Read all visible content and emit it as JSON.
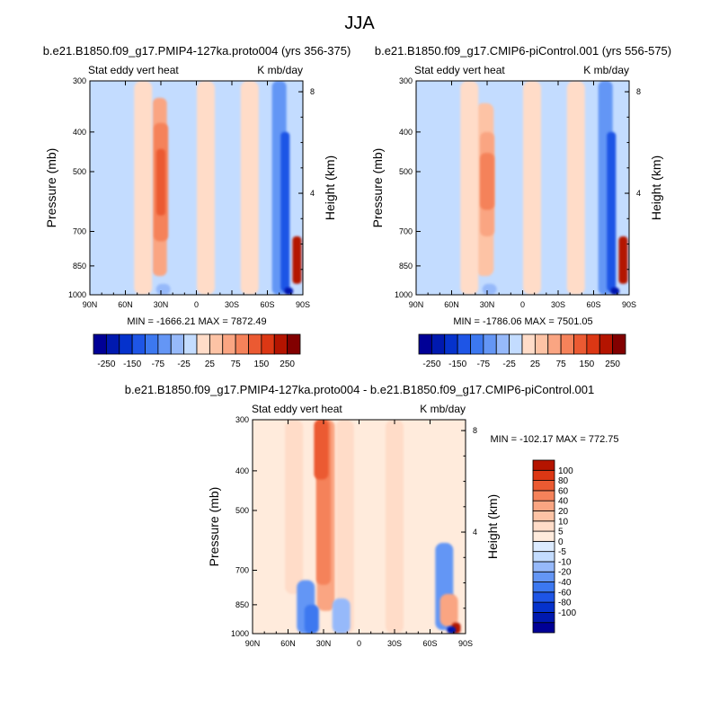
{
  "season_title": "JJA",
  "shared": {
    "x_ticks": [
      "90N",
      "60N",
      "30N",
      "0",
      "30S",
      "60S",
      "90S"
    ],
    "y_ticks": [
      "300",
      "400",
      "500",
      "700",
      "850",
      "1000"
    ],
    "height_ticks": [
      "8",
      "4"
    ],
    "ylabel": "Pressure (mb)",
    "y2label": "Height (km)"
  },
  "chart_data": [
    {
      "type": "heatmap",
      "id": "panel_a",
      "title": "b.e21.B1850.f09_g17.PMIP4-127ka.proto004 (yrs 356-375)",
      "left_label": "Stat eddy vert heat",
      "right_label": "K mb/day",
      "min_max": "MIN = -1666.21   MAX = 7872.49",
      "x_range": [
        90,
        -90
      ],
      "y_range_mb": [
        1000,
        300
      ],
      "features": [
        {
          "lat": 31,
          "p_from": 330,
          "p_to": 900,
          "value": 50
        },
        {
          "lat": 30,
          "p_from": 380,
          "p_to": 740,
          "value": 75
        },
        {
          "lat": 30,
          "p_from": 440,
          "p_to": 640,
          "value": 100
        },
        {
          "lat": 45,
          "p_from": 300,
          "p_to": 1000,
          "value": 10
        },
        {
          "lat": -8,
          "p_from": 300,
          "p_to": 1000,
          "value": 10
        },
        {
          "lat": -45,
          "p_from": 300,
          "p_to": 1000,
          "value": 10
        },
        {
          "lat": -70,
          "p_from": 300,
          "p_to": 1000,
          "value": -60
        },
        {
          "lat": -75,
          "p_from": 400,
          "p_to": 980,
          "value": -150
        },
        {
          "lat": -85,
          "p_from": 720,
          "p_to": 940,
          "value": 200
        },
        {
          "lat": -78,
          "p_from": 960,
          "p_to": 1000,
          "value": -250
        },
        {
          "lat": 28,
          "p_from": 940,
          "p_to": 1000,
          "value": -50
        }
      ]
    },
    {
      "type": "heatmap",
      "id": "panel_b",
      "title": "b.e21.B1850.f09_g17.CMIP6-piControl.001 (yrs 556-575)",
      "left_label": "Stat eddy vert heat",
      "right_label": "K mb/day",
      "min_max": "MIN = -1786.06   MAX = 7501.05",
      "x_range": [
        90,
        -90
      ],
      "y_range_mb": [
        1000,
        300
      ],
      "features": [
        {
          "lat": 32,
          "p_from": 340,
          "p_to": 900,
          "value": 25
        },
        {
          "lat": 30,
          "p_from": 400,
          "p_to": 720,
          "value": 50
        },
        {
          "lat": 30,
          "p_from": 450,
          "p_to": 620,
          "value": 75
        },
        {
          "lat": 45,
          "p_from": 300,
          "p_to": 1000,
          "value": 10
        },
        {
          "lat": -8,
          "p_from": 300,
          "p_to": 1000,
          "value": 10
        },
        {
          "lat": -45,
          "p_from": 300,
          "p_to": 1000,
          "value": 10
        },
        {
          "lat": -70,
          "p_from": 300,
          "p_to": 1000,
          "value": -60
        },
        {
          "lat": -75,
          "p_from": 400,
          "p_to": 980,
          "value": -150
        },
        {
          "lat": -85,
          "p_from": 720,
          "p_to": 940,
          "value": 200
        },
        {
          "lat": -78,
          "p_from": 960,
          "p_to": 1000,
          "value": -250
        },
        {
          "lat": 28,
          "p_from": 940,
          "p_to": 1000,
          "value": -50
        }
      ]
    },
    {
      "type": "heatmap",
      "id": "panel_diff",
      "title": "b.e21.B1850.f09_g17.PMIP4-127ka.proto004 - b.e21.B1850.f09_g17.CMIP6-piControl.001",
      "left_label": "Stat eddy vert heat",
      "right_label": "K mb/day",
      "min_max": "MIN = -102.17   MAX = 772.75",
      "x_range": [
        90,
        -90
      ],
      "y_range_mb": [
        1000,
        300
      ],
      "features": [
        {
          "lat": 28,
          "p_from": 300,
          "p_to": 880,
          "value": 20
        },
        {
          "lat": 30,
          "p_from": 300,
          "p_to": 760,
          "value": 40
        },
        {
          "lat": 32,
          "p_from": 300,
          "p_to": 420,
          "value": 60
        },
        {
          "lat": 55,
          "p_from": 300,
          "p_to": 800,
          "value": 5
        },
        {
          "lat": 12,
          "p_from": 300,
          "p_to": 1000,
          "value": 5
        },
        {
          "lat": -30,
          "p_from": 300,
          "p_to": 1000,
          "value": 5
        },
        {
          "lat": 45,
          "p_from": 740,
          "p_to": 1000,
          "value": -20
        },
        {
          "lat": 40,
          "p_from": 850,
          "p_to": 1000,
          "value": -40
        },
        {
          "lat": 15,
          "p_from": 820,
          "p_to": 1000,
          "value": -10
        },
        {
          "lat": -72,
          "p_from": 600,
          "p_to": 980,
          "value": -20
        },
        {
          "lat": -76,
          "p_from": 800,
          "p_to": 960,
          "value": 20
        },
        {
          "lat": -82,
          "p_from": 940,
          "p_to": 1000,
          "value": 100
        },
        {
          "lat": -78,
          "p_from": 960,
          "p_to": 1000,
          "value": -100
        }
      ]
    }
  ],
  "colorbar_top": {
    "colors": [
      "#000096",
      "#0019AF",
      "#0532CC",
      "#1E55E6",
      "#3C78F0",
      "#6496F5",
      "#96B9FA",
      "#C3DCFF",
      "#FFDCC8",
      "#FDC3A5",
      "#FAA582",
      "#F5825A",
      "#EB5A32",
      "#DC3714",
      "#B41400",
      "#820000"
    ],
    "tick_labels": [
      "-250",
      "-150",
      "-75",
      "-25",
      "25",
      "75",
      "150",
      "250"
    ]
  },
  "colorbar_diff": {
    "colors": [
      "#000096",
      "#0019AF",
      "#0532CC",
      "#1E55E6",
      "#3C78F0",
      "#6496F5",
      "#96B9FA",
      "#C3DCFF",
      "#DCEBFF",
      "#FFEBDC",
      "#FFDCC8",
      "#FDC3A5",
      "#FAA582",
      "#F5825A",
      "#EB5A32",
      "#DC3714",
      "#B41400"
    ],
    "tick_labels": [
      "100",
      "80",
      "60",
      "40",
      "20",
      "10",
      "5",
      "0",
      "-5",
      "-10",
      "-20",
      "-40",
      "-60",
      "-80",
      "-100"
    ]
  }
}
